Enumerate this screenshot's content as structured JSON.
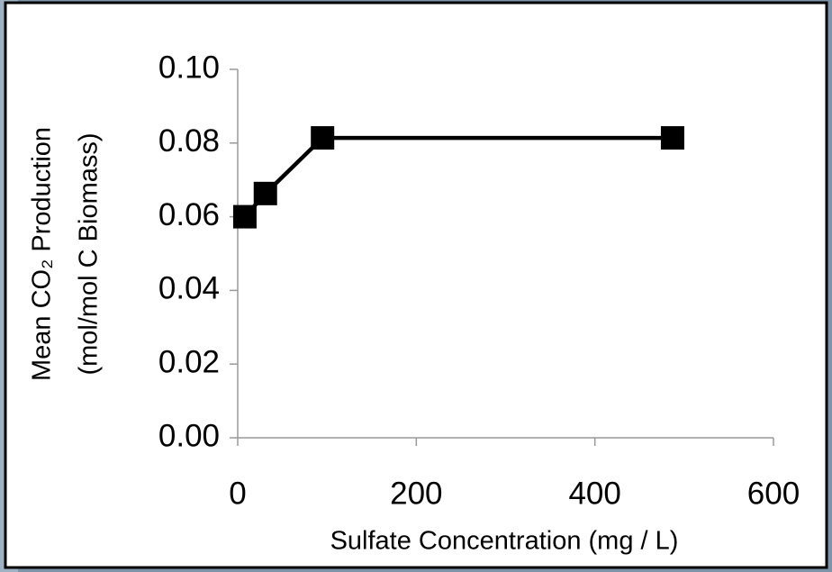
{
  "chart_data": {
    "type": "line",
    "x_label": "Sulfate Concentration (mg / L)",
    "y_label": [
      "Mean CO₂ Production",
      "(mol/mol C Biomass)"
    ],
    "x": [
      8,
      31,
      95,
      487
    ],
    "series": [
      {
        "name": "Mean CO₂ Production",
        "color": "#000000",
        "values": [
          0.06,
          0.0663,
          0.0814,
          0.0814
        ]
      }
    ],
    "xlim": [
      0,
      600
    ],
    "xticks": [
      0,
      200,
      400,
      600
    ],
    "ylim": [
      0,
      0.1
    ],
    "yticks": [
      {
        "value": 0,
        "label": "0.00"
      },
      {
        "value": 0.02,
        "label": "0.02"
      },
      {
        "value": 0.04,
        "label": "0.04"
      },
      {
        "value": 0.06,
        "label": "0.06"
      },
      {
        "value": 0.08,
        "label": "0.08"
      },
      {
        "value": 0.1,
        "label": "0.10"
      }
    ],
    "grid": false
  }
}
